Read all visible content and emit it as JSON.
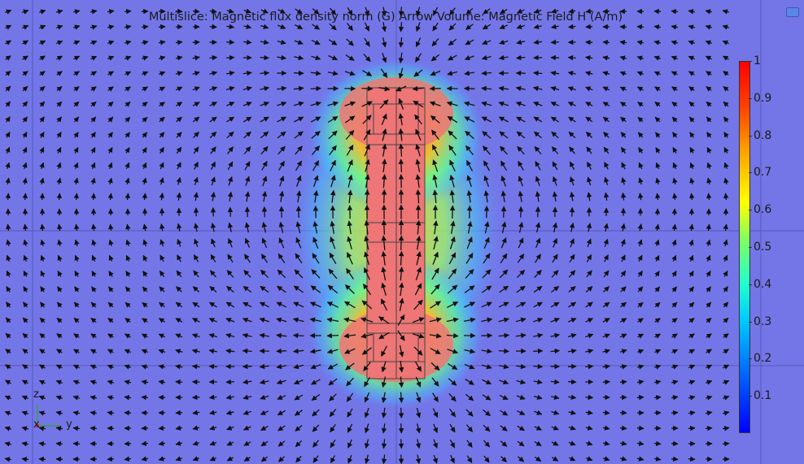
{
  "plot": {
    "title": "Multislice: Magnetic flux density norm (G) Arrow Volume: Magnetic Field H (A/m)",
    "colorbar": {
      "min": 0,
      "max": 1,
      "ticks": [
        "1",
        "0.9",
        "0.8",
        "0.7",
        "0.6",
        "0.5",
        "0.4",
        "0.3",
        "0.2",
        "0.1"
      ],
      "colors": [
        "#0000ff",
        "#00c8ff",
        "#80ff60",
        "#ffff00",
        "#ffa000",
        "#ff0000"
      ]
    },
    "background_color": "#7476e8",
    "magnet_color": "#ee7676",
    "arrow_color": "#111111"
  },
  "axes_triad": {
    "z": "z",
    "x": "x",
    "y": "y"
  },
  "toolbar": {
    "corner_icon": "window-restore-icon"
  }
}
